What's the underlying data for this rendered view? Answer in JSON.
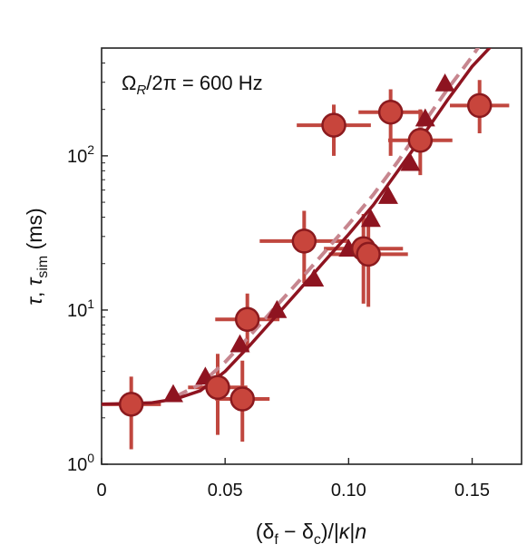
{
  "chart_data": {
    "type": "scatter",
    "annotation": "Ω_R/2π = 600 Hz",
    "xlabel": "(δ_f − δ_c)/|κ|n",
    "ylabel": "τ, τ_sim (ms)",
    "x_ticks": [
      "0",
      "0.05",
      "0.10",
      "0.15"
    ],
    "y_ticks": [
      "10^0",
      "10^1",
      "10^2"
    ],
    "xlim": [
      0,
      0.17
    ],
    "ylim": [
      1,
      500
    ],
    "yscale": "log",
    "grid": false,
    "colors": {
      "circle_fill": "#c8453c",
      "circle_stroke": "#8b1a1e",
      "errorbar": "#c0473f",
      "triangle": "#8e1420",
      "solid_line": "#8e1420",
      "dashed_line": "#c7868f"
    },
    "series": [
      {
        "marker": "circle",
        "x": [
          0.012,
          0.047,
          0.057,
          0.059,
          0.082,
          0.094,
          0.106,
          0.108,
          0.117,
          0.129,
          0.153
        ],
        "y": [
          2.45,
          3.15,
          2.65,
          8.7,
          28,
          158,
          25,
          23,
          192,
          126,
          212
        ],
        "xerr": [
          0.012,
          0.012,
          0.011,
          0.013,
          0.018,
          0.015,
          0.016,
          0.016,
          0.013,
          0.013,
          0.012
        ],
        "ylow": [
          1.25,
          1.55,
          1.4,
          5.4,
          15,
          100,
          11,
          10.5,
          100,
          75,
          140
        ],
        "yhigh": [
          3.7,
          5.2,
          4.7,
          12.8,
          44,
          215,
          42,
          38,
          270,
          200,
          310
        ]
      },
      {
        "marker": "triangle",
        "x": [
          0.029,
          0.042,
          0.056,
          0.071,
          0.086,
          0.1,
          0.109,
          0.116,
          0.125,
          0.131,
          0.139
        ],
        "y": [
          2.85,
          3.7,
          6.0,
          10.0,
          16,
          25,
          39,
          55,
          90,
          175,
          295
        ]
      },
      {
        "marker": "line-solid",
        "x": [
          0.0,
          0.02,
          0.03,
          0.04,
          0.05,
          0.06,
          0.07,
          0.08,
          0.09,
          0.1,
          0.11,
          0.12,
          0.13,
          0.14,
          0.15,
          0.158
        ],
        "y": [
          2.45,
          2.5,
          2.65,
          3.0,
          4.0,
          5.9,
          8.9,
          13.5,
          20.5,
          31,
          48,
          80,
          135,
          230,
          380,
          520
        ]
      },
      {
        "marker": "line-dashed",
        "x": [
          0.03,
          0.04,
          0.05,
          0.06,
          0.07,
          0.08,
          0.09,
          0.1,
          0.11,
          0.12,
          0.13,
          0.14,
          0.15,
          0.153
        ],
        "y": [
          2.75,
          3.3,
          4.6,
          6.8,
          10.3,
          15.5,
          23.5,
          36,
          56,
          92,
          160,
          270,
          440,
          520
        ]
      }
    ]
  }
}
